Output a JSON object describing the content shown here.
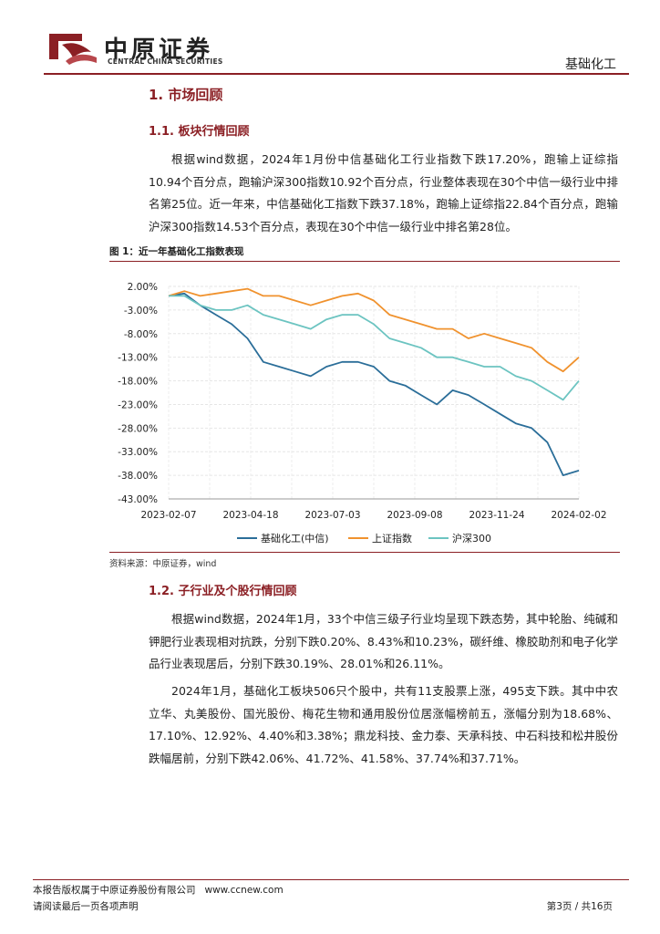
{
  "header": {
    "brand_cn": "中原证券",
    "brand_en": "CENTRAL CHINA SECURITIES",
    "section": "基础化工"
  },
  "sec1": {
    "title": "1. 市场回顾"
  },
  "sec11": {
    "title": "1.1. 板块行情回顾",
    "para": "根据wind数据，2024年1月份中信基础化工行业指数下跌17.20%，跑输上证综指10.94个百分点，跑输沪深300指数10.92个百分点，行业整体表现在30个中信一级行业中排名第25位。近一年来，中信基础化工指数下跌37.18%，跑输上证综指22.84个百分点，跑输沪深300指数14.53个百分点，表现在30个中信一级行业中排名第28位。"
  },
  "figure": {
    "title": "图 1：近一年基础化工指数表现",
    "source": "资料来源：中原证券，wind"
  },
  "chart_data": {
    "type": "line",
    "title": "近一年基础化工指数表现",
    "x": [
      "2023-02-07",
      "2023-02-21",
      "2023-03-07",
      "2023-03-21",
      "2023-04-04",
      "2023-04-18",
      "2023-05-02",
      "2023-05-16",
      "2023-05-30",
      "2023-06-13",
      "2023-06-27",
      "2023-07-11",
      "2023-07-25",
      "2023-08-08",
      "2023-08-22",
      "2023-09-05",
      "2023-09-19",
      "2023-10-03",
      "2023-10-17",
      "2023-10-31",
      "2023-11-14",
      "2023-11-28",
      "2023-12-12",
      "2023-12-26",
      "2024-01-09",
      "2024-01-23",
      "2024-02-02"
    ],
    "xticks": [
      "2023-02-07",
      "2023-04-18",
      "2023-07-03",
      "2023-09-08",
      "2023-11-24",
      "2024-02-02"
    ],
    "yticks": [
      "2.00%",
      "-3.00%",
      "-8.00%",
      "-13.00%",
      "-18.00%",
      "-23.00%",
      "-28.00%",
      "-33.00%",
      "-38.00%",
      "-43.00%"
    ],
    "ylim": [
      -43,
      2
    ],
    "series": [
      {
        "name": "基础化工(中信)",
        "color": "#2b6e99",
        "values": [
          0,
          0.5,
          -2,
          -4,
          -6,
          -9,
          -14,
          -15,
          -16,
          -17,
          -15,
          -14,
          -14,
          -15,
          -18,
          -19,
          -21,
          -23,
          -20,
          -21,
          -23,
          -25,
          -27,
          -28,
          -31,
          -38,
          -37
        ]
      },
      {
        "name": "上证指数",
        "color": "#f0922e",
        "values": [
          0,
          1,
          0,
          0.5,
          1,
          1.5,
          0,
          0,
          -1,
          -2,
          -1,
          0,
          0.5,
          -1,
          -4,
          -5,
          -6,
          -7,
          -7,
          -9,
          -8,
          -9,
          -10,
          -11,
          -14,
          -16,
          -13
        ]
      },
      {
        "name": "沪深300",
        "color": "#6cc4c1",
        "values": [
          0,
          0,
          -2,
          -3,
          -3,
          -2,
          -4,
          -5,
          -6,
          -7,
          -5,
          -4,
          -4,
          -6,
          -9,
          -10,
          -11,
          -13,
          -13,
          -14,
          -15,
          -15,
          -17,
          -18,
          -20,
          -22,
          -18
        ]
      }
    ]
  },
  "sec12": {
    "title": "1.2. 子行业及个股行情回顾",
    "para1": "根据wind数据，2024年1月，33个中信三级子行业均呈现下跌态势，其中轮胎、纯碱和钾肥行业表现相对抗跌，分别下跌0.20%、8.43%和10.23%，碳纤维、橡胶助剂和电子化学品行业表现居后，分别下跌30.19%、28.01%和26.11%。",
    "para2": "2024年1月，基础化工板块506只个股中，共有11支股票上涨，495支下跌。其中中农立华、丸美股份、国光股份、梅花生物和通用股份位居涨幅榜前五，涨幅分别为18.68%、17.10%、12.92%、4.40%和3.38%；鼎龙科技、金力泰、天承科技、中石科技和松井股份跌幅居前，分别下跌42.06%、41.72%、41.58%、37.74%和37.71%。"
  },
  "footer": {
    "copyright": "本报告版权属于中原证券股份有限公司",
    "url": "www.ccnew.com",
    "disclaimer": "请阅读最后一页各项声明",
    "page": "第3页 / 共16页"
  }
}
